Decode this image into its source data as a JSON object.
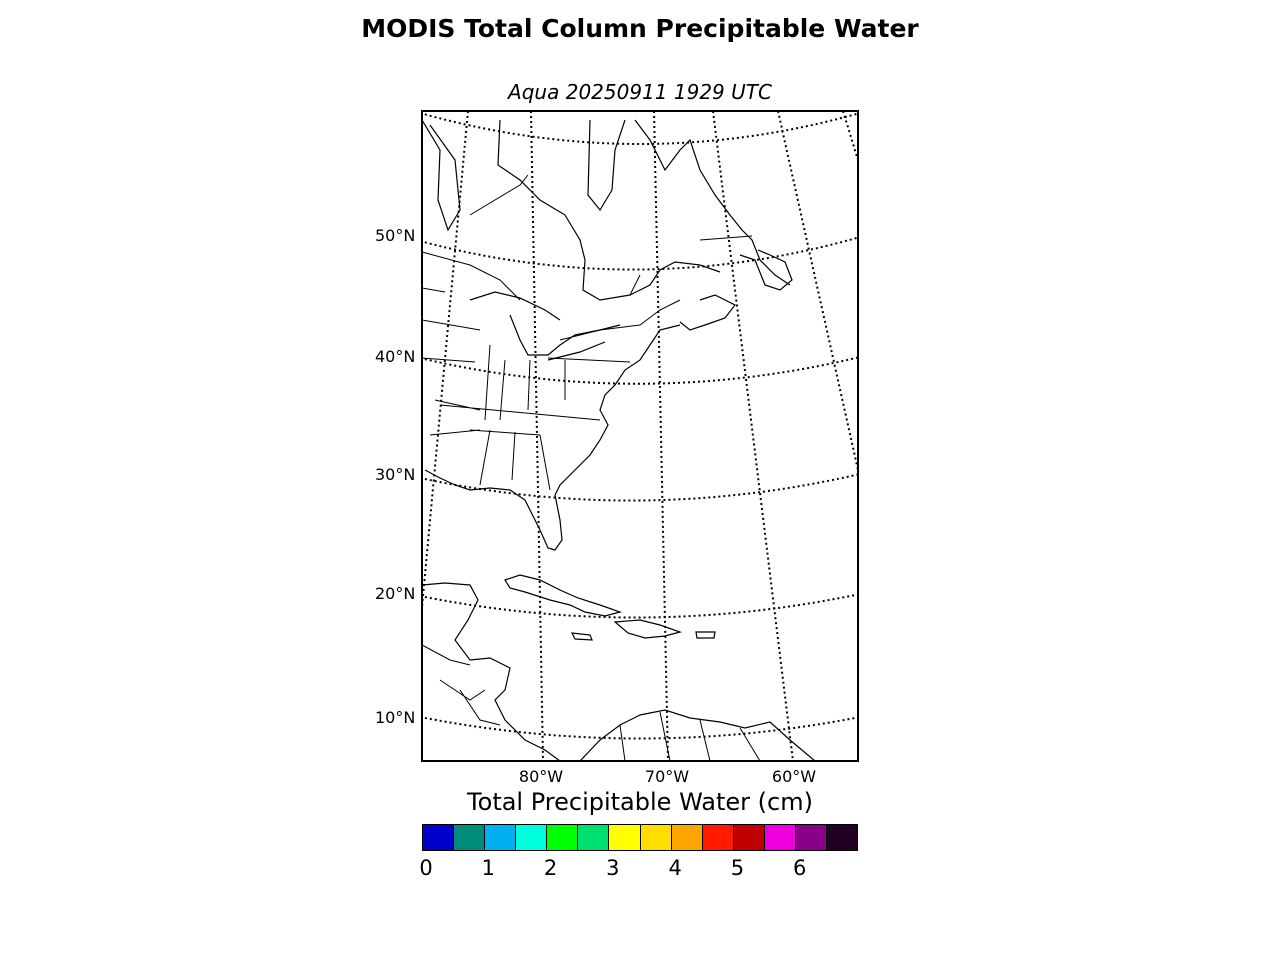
{
  "title": "MODIS Total Column Precipitable Water",
  "subtitle": "Aqua 20250911 1929 UTC",
  "map": {
    "latitude_labels": [
      "50°N",
      "40°N",
      "30°N",
      "20°N",
      "10°N"
    ],
    "longitude_labels": [
      "80°W",
      "70°W",
      "60°W"
    ],
    "graticule_style": "dotted",
    "frame_color": "#000000"
  },
  "colorbar": {
    "title": "Total Precipitable Water (cm)",
    "tick_labels": [
      "0",
      "1",
      "2",
      "3",
      "4",
      "5",
      "6"
    ],
    "range": [
      0,
      7
    ],
    "colors": [
      "#0000cc",
      "#008b7a",
      "#00b0f0",
      "#00ffdd",
      "#00ff00",
      "#00e070",
      "#ffff00",
      "#ffdd00",
      "#ffa500",
      "#ff1a00",
      "#c00000",
      "#ee00dd",
      "#8b008b",
      "#220022"
    ]
  }
}
